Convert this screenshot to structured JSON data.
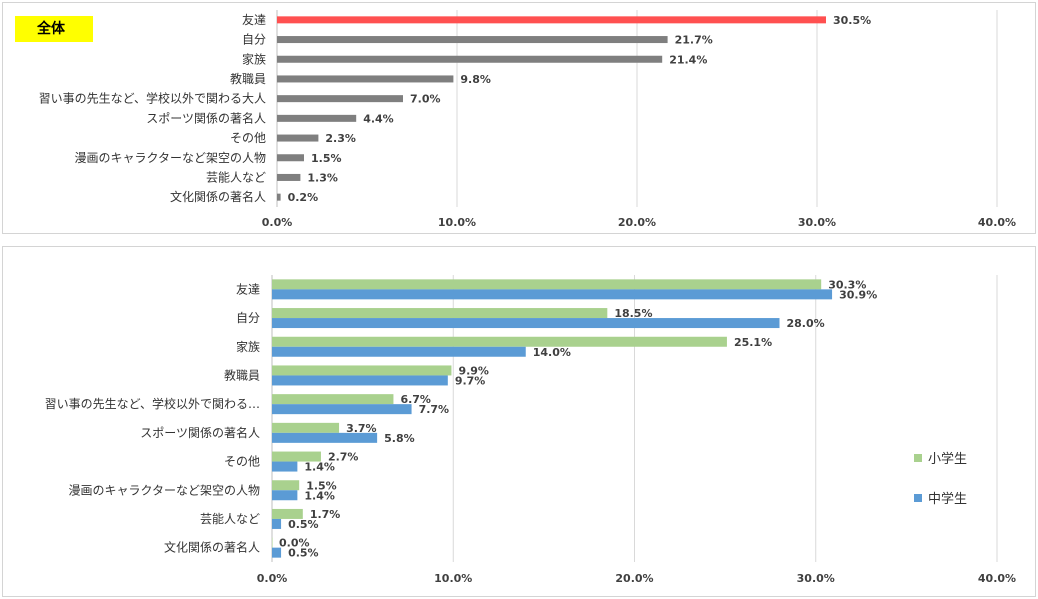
{
  "chart_data": [
    {
      "type": "bar",
      "orientation": "horizontal",
      "badge": "全体",
      "categories": [
        "友達",
        "自分",
        "家族",
        "教職員",
        "習い事の先生など、学校以外で関わる大人",
        "スポーツ関係の著名人",
        "その他",
        "漫画のキャラクターなど架空の人物",
        "芸能人など",
        "文化関係の著名人"
      ],
      "values": [
        30.5,
        21.7,
        21.4,
        9.8,
        7.0,
        4.4,
        2.3,
        1.5,
        1.3,
        0.2
      ],
      "value_labels": [
        "30.5%",
        "21.7%",
        "21.4%",
        "9.8%",
        "7.0%",
        "4.4%",
        "2.3%",
        "1.5%",
        "1.3%",
        "0.2%"
      ],
      "highlight_color": "#ff5050",
      "bar_color": "#7f7f7f",
      "xlim": [
        0,
        40
      ],
      "x_ticks": [
        "0.0%",
        "10.0%",
        "20.0%",
        "30.0%",
        "40.0%"
      ],
      "grid": true
    },
    {
      "type": "bar",
      "orientation": "horizontal",
      "categories": [
        "友達",
        "自分",
        "家族",
        "教職員",
        "習い事の先生など、学校以外で関わる…",
        "スポーツ関係の著名人",
        "その他",
        "漫画のキャラクターなど架空の人物",
        "芸能人など",
        "文化関係の著名人"
      ],
      "series": [
        {
          "name": "小学生",
          "color": "#a9d18e",
          "values": [
            30.3,
            18.5,
            25.1,
            9.9,
            6.7,
            3.7,
            2.7,
            1.5,
            1.7,
            0.0
          ],
          "value_labels": [
            "30.3%",
            "18.5%",
            "25.1%",
            "9.9%",
            "6.7%",
            "3.7%",
            "2.7%",
            "1.5%",
            "1.7%",
            "0.0%"
          ]
        },
        {
          "name": "中学生",
          "color": "#5b9bd5",
          "values": [
            30.9,
            28.0,
            14.0,
            9.7,
            7.7,
            5.8,
            1.4,
            1.4,
            0.5,
            0.5
          ],
          "value_labels": [
            "30.9%",
            "28.0%",
            "14.0%",
            "9.7%",
            "7.7%",
            "5.8%",
            "1.4%",
            "1.4%",
            "0.5%",
            "0.5%"
          ]
        }
      ],
      "xlim": [
        0,
        40
      ],
      "x_ticks": [
        "0.0%",
        "10.0%",
        "20.0%",
        "30.0%",
        "40.0%"
      ],
      "grid": true,
      "legend_position": "right"
    }
  ]
}
